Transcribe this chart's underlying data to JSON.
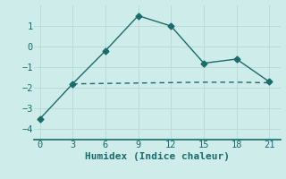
{
  "xlabel": "Humidex (Indice chaleur)",
  "line1_x": [
    0,
    3,
    6,
    9,
    12,
    15,
    18,
    21
  ],
  "line1_y": [
    -3.5,
    -1.8,
    -0.2,
    1.5,
    1.0,
    -0.8,
    -0.6,
    -1.7
  ],
  "line2_x": [
    3,
    6,
    9,
    12,
    15,
    18,
    21
  ],
  "line2_y": [
    -1.8,
    -1.78,
    -1.76,
    -1.74,
    -1.72,
    -1.72,
    -1.75
  ],
  "line_color": "#1a6b6b",
  "bg_color": "#ceecea",
  "grid_color_major": "#b8dbd9",
  "grid_color_minor": "#daecea",
  "xlim": [
    -0.5,
    22
  ],
  "ylim": [
    -4.5,
    2.0
  ],
  "xticks": [
    0,
    3,
    6,
    9,
    12,
    15,
    18,
    21
  ],
  "yticks": [
    -4,
    -3,
    -2,
    -1,
    0,
    1
  ],
  "markersize": 3.5,
  "linewidth": 1.0,
  "tick_fontsize": 7.5,
  "label_fontsize": 8
}
